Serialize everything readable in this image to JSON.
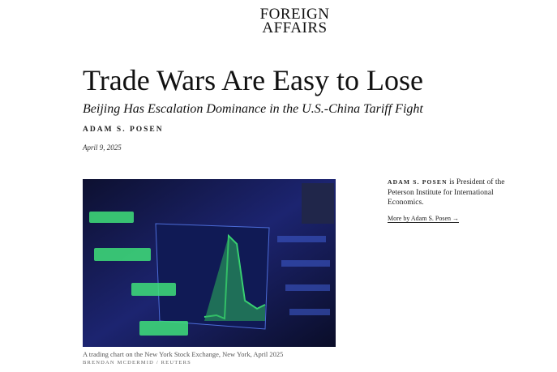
{
  "header": {
    "logo_line1": "FOREIGN",
    "logo_line2": "AFFAIRS"
  },
  "article": {
    "title": "Trade Wars Are Easy to Lose",
    "subtitle": "Beijing Has Escalation Dominance in the U.S.-China Tariff Fight",
    "author": "Adam S. Posen",
    "date": "April 9, 2025"
  },
  "image": {
    "caption": "A trading chart on the New York Stock Exchange, New York, April 2025",
    "credit": "Brendan McDermid / Reuters",
    "colors": {
      "background": "#141a4a",
      "ticker": "#3fe07a"
    }
  },
  "sidebar": {
    "author_name": "Adam S. Posen",
    "bio": " is President of the Peterson Institute for International Economics.",
    "more_link": "More by Adam S. Posen →"
  }
}
